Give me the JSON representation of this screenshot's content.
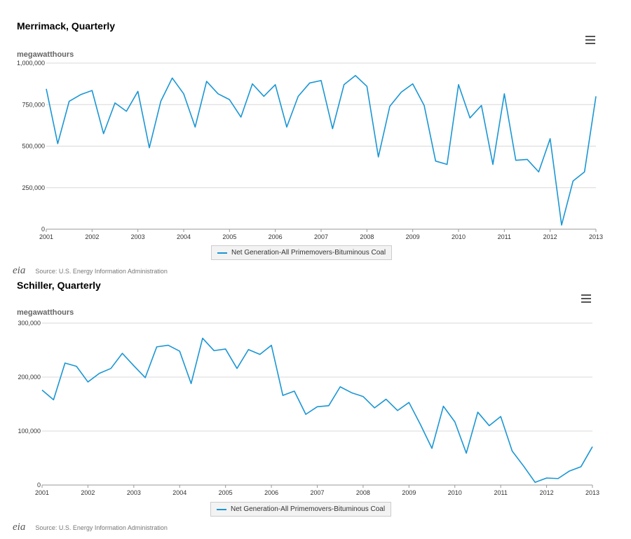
{
  "chart_data": [
    {
      "type": "line",
      "title": "Merrimack, Quarterly",
      "ylabel": "megawatthours",
      "xlabel": "",
      "x_start": 2001,
      "x_end": 2013,
      "xlim": [
        2001,
        2013
      ],
      "ylim": [
        0,
        1000000
      ],
      "x_ticks": [
        "2001",
        "2002",
        "2003",
        "2004",
        "2005",
        "2006",
        "2007",
        "2008",
        "2009",
        "2010",
        "2011",
        "2012",
        "2013"
      ],
      "y_ticks": [
        0,
        250000,
        500000,
        750000,
        1000000
      ],
      "y_tick_labels": [
        "0",
        "250,000",
        "500,000",
        "750,000",
        "1,000,000"
      ],
      "grid": true,
      "legend": "bottom-center",
      "series": [
        {
          "name": "Net Generation-All Primemovers-Bituminous Coal",
          "color": "#1a96d4",
          "values": [
            845000,
            515000,
            770000,
            810000,
            835000,
            575000,
            760000,
            710000,
            830000,
            490000,
            770000,
            910000,
            815000,
            615000,
            890000,
            815000,
            780000,
            675000,
            875000,
            800000,
            870000,
            615000,
            800000,
            880000,
            895000,
            605000,
            870000,
            925000,
            860000,
            435000,
            740000,
            825000,
            875000,
            745000,
            410000,
            390000,
            870000,
            670000,
            745000,
            390000,
            815000,
            415000,
            420000,
            345000,
            545000,
            25000,
            290000,
            345000,
            800000
          ]
        }
      ],
      "source": "Source: U.S. Energy Information Administration",
      "logo": "eia"
    },
    {
      "type": "line",
      "title": "Schiller, Quarterly",
      "ylabel": "megawatthours",
      "xlabel": "",
      "x_start": 2001,
      "x_end": 2013,
      "xlim": [
        2001,
        2013
      ],
      "ylim": [
        0,
        300000
      ],
      "x_ticks": [
        "2001",
        "2002",
        "2003",
        "2004",
        "2005",
        "2006",
        "2007",
        "2008",
        "2009",
        "2010",
        "2011",
        "2012",
        "2013"
      ],
      "y_ticks": [
        0,
        100000,
        200000,
        300000
      ],
      "y_tick_labels": [
        "0",
        "100,000",
        "200,000",
        "300,000"
      ],
      "grid": true,
      "legend": "bottom-center",
      "series": [
        {
          "name": "Net Generation-All Primemovers-Bituminous Coal",
          "color": "#1a96d4",
          "values": [
            176000,
            158000,
            226000,
            220000,
            191000,
            207000,
            216000,
            244000,
            221000,
            199000,
            256000,
            259000,
            248000,
            188000,
            272000,
            249000,
            252000,
            216000,
            251000,
            242000,
            259000,
            166000,
            174000,
            131000,
            145000,
            147000,
            182000,
            171000,
            164000,
            143000,
            159000,
            138000,
            153000,
            112000,
            68000,
            146000,
            117000,
            59000,
            135000,
            110000,
            127000,
            63000,
            35000,
            5000,
            13000,
            12000,
            26000,
            34000,
            71000
          ]
        }
      ],
      "source": "Source: U.S. Energy Information Administration",
      "logo": "eia"
    }
  ]
}
